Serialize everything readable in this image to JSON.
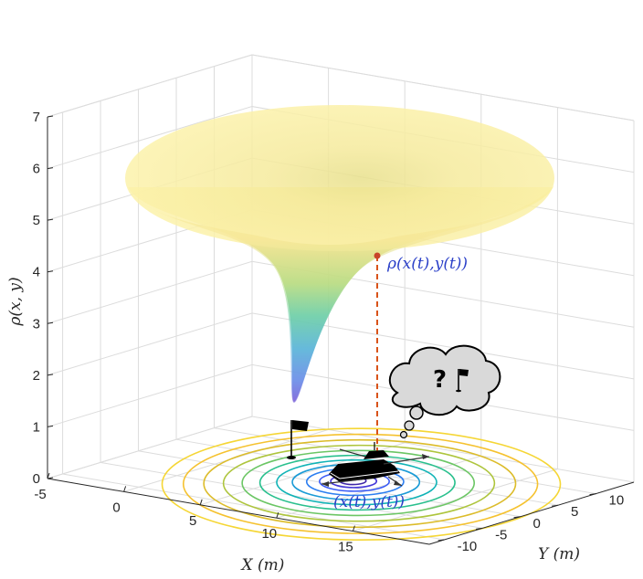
{
  "chart_data": {
    "type": "surface",
    "title": "",
    "xlabel": "X  (m)",
    "ylabel": "Y  (m)",
    "zlabel": "ρ(x, y)",
    "x_ticks": [
      "-5",
      "0",
      "5",
      "10",
      "15"
    ],
    "y_ticks": [
      "-10",
      "-5",
      "0",
      "5",
      "10"
    ],
    "z_ticks": [
      "0",
      "1",
      "2",
      "3",
      "4",
      "5",
      "6",
      "7"
    ],
    "xlim": [
      -5,
      20
    ],
    "ylim": [
      -12,
      15
    ],
    "zlim": [
      0,
      7
    ],
    "grid": true,
    "surface": {
      "center": [
        8,
        2
      ],
      "min_value": 0.2,
      "max_value": 5.6,
      "colormap": "parula"
    },
    "contours": {
      "center": [
        8,
        2
      ],
      "count": 12,
      "colormap": "parula"
    },
    "goal_point": [
      8,
      2,
      0
    ],
    "boat_position": [
      15.5,
      2,
      0
    ],
    "field_value_at_boat": 4.3,
    "annotations": {
      "field_label": "ρ(x(t),y(t))",
      "position_label": "(x(t),y(t))",
      "thought_symbol": "?"
    },
    "colors": {
      "dashed_line": "#d95319",
      "marker": "#c8442a",
      "annotation_text": "#2a3fc8",
      "cloud_fill": "#d9d9d9"
    }
  }
}
